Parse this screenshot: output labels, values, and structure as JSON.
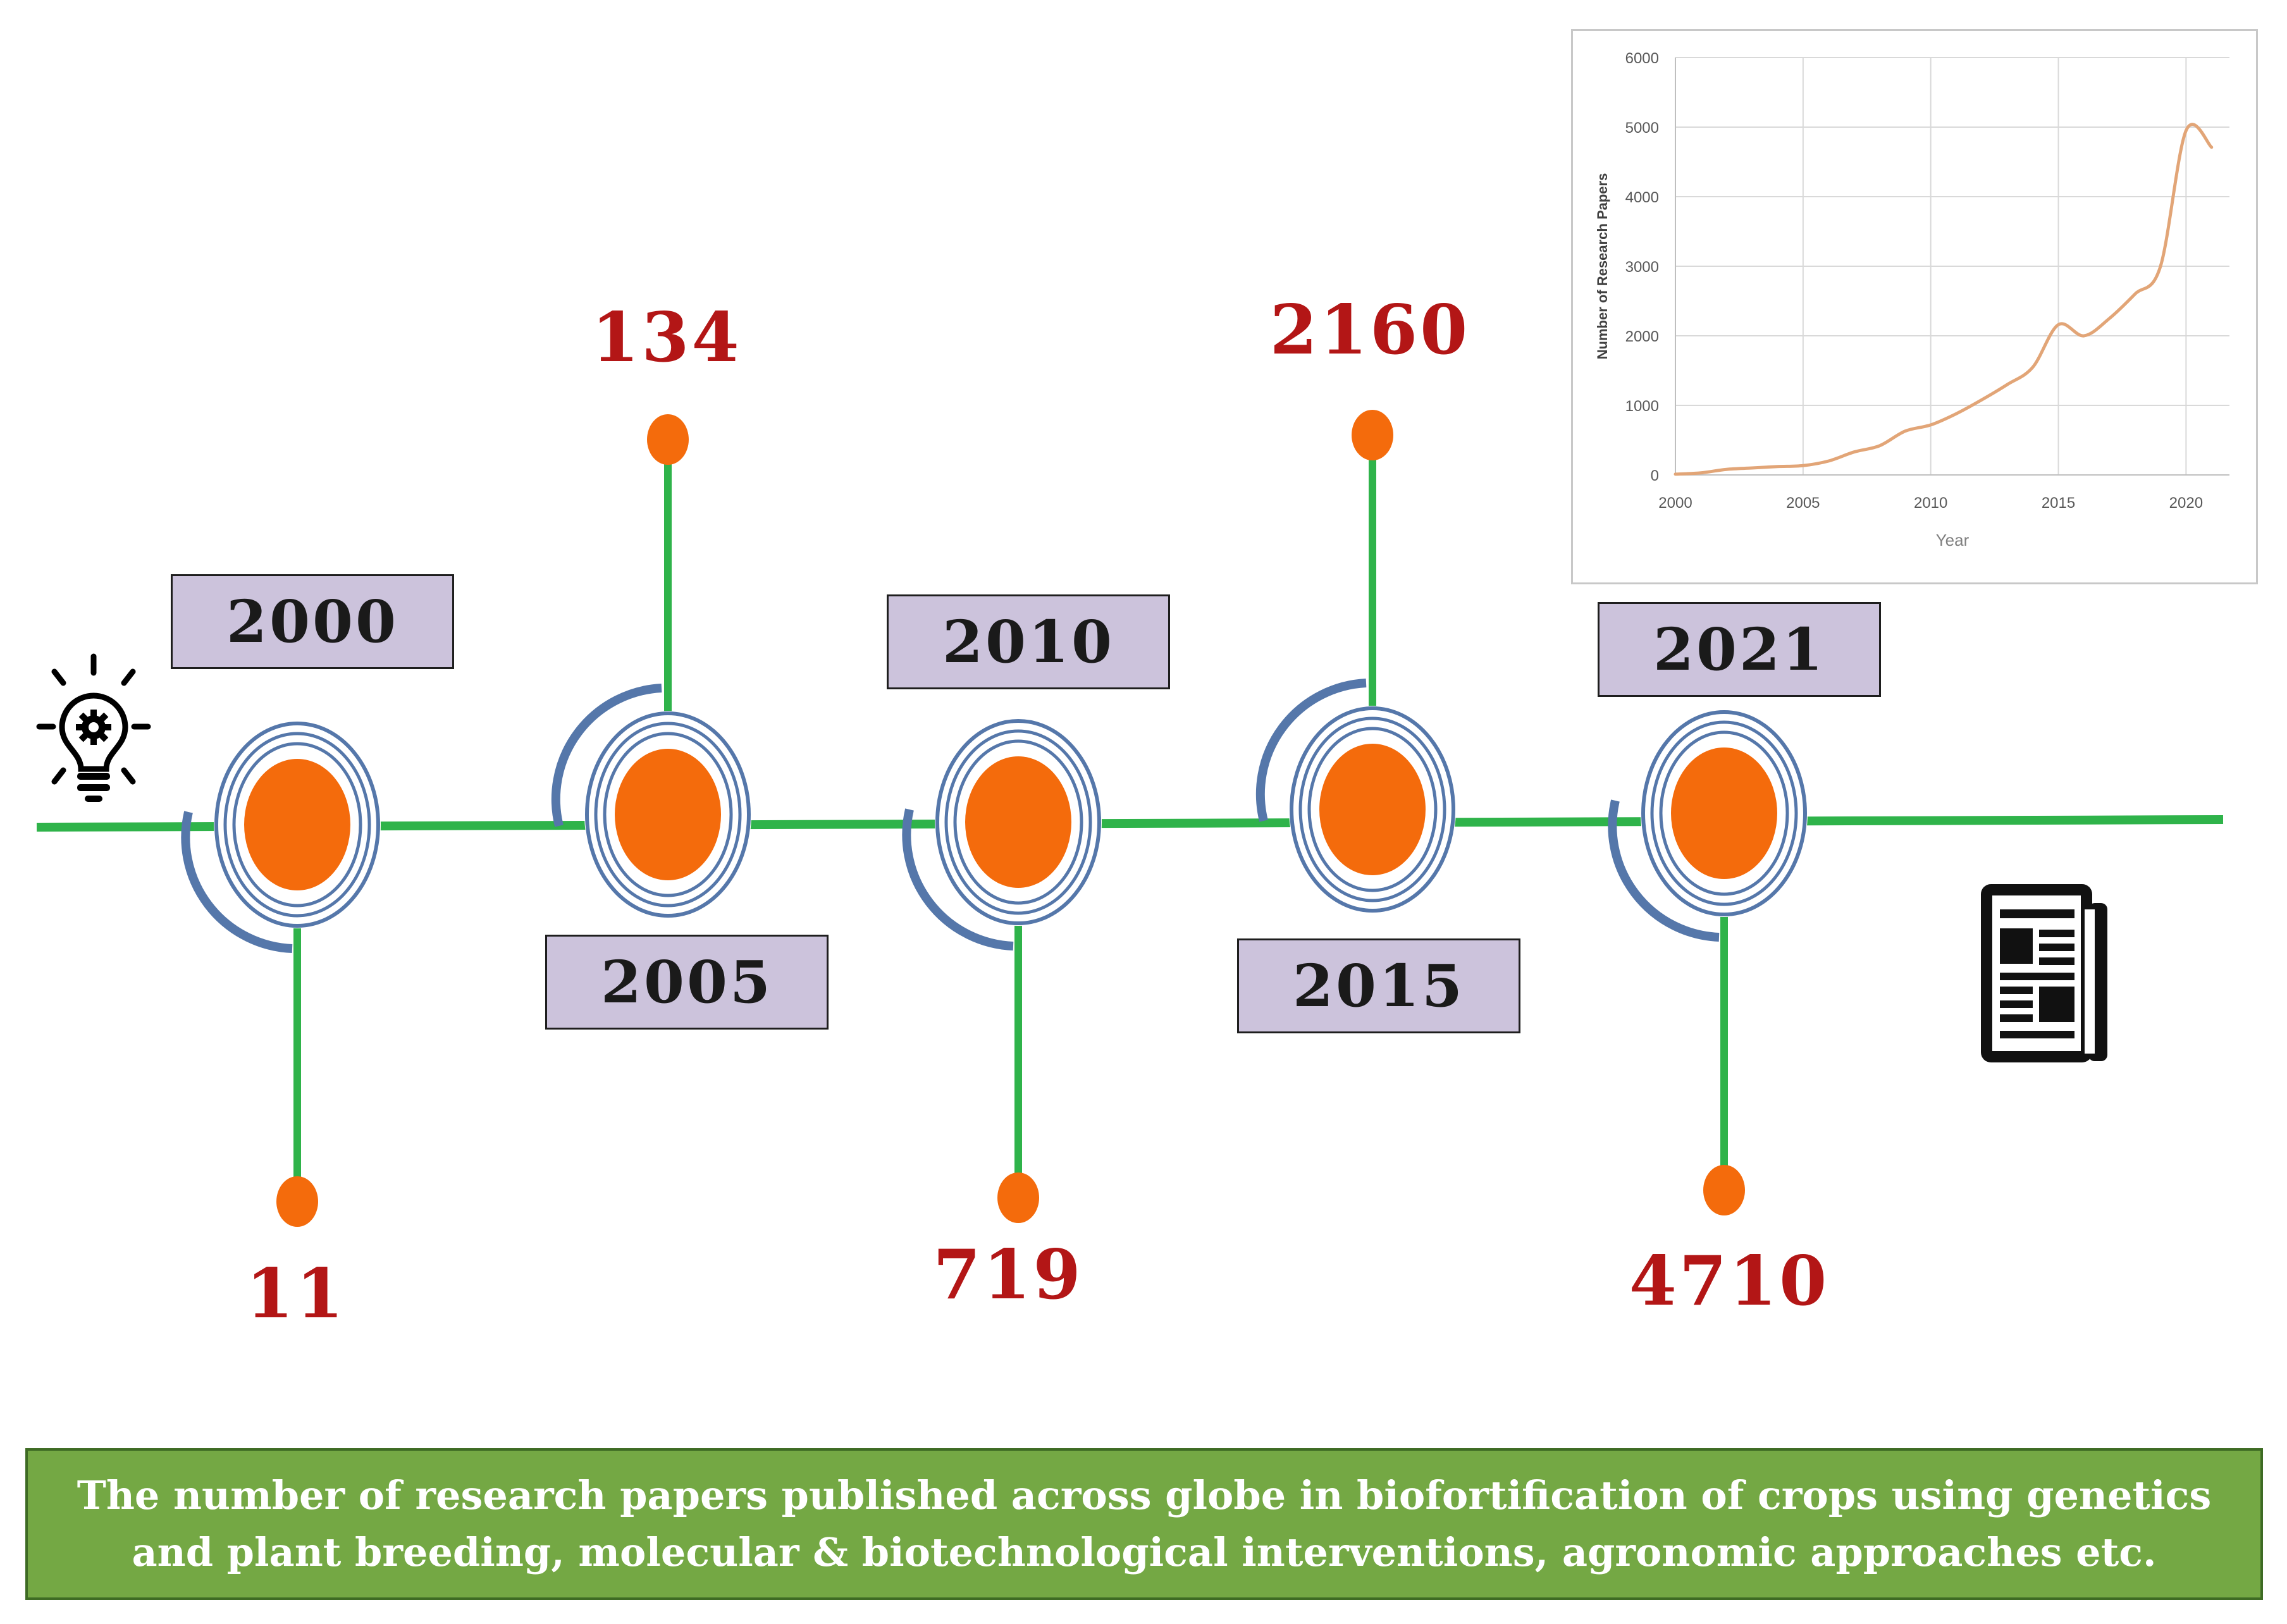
{
  "milestones": [
    {
      "year": "2000",
      "count": "11"
    },
    {
      "year": "2005",
      "count": "134"
    },
    {
      "year": "2010",
      "count": "719"
    },
    {
      "year": "2015",
      "count": "2160"
    },
    {
      "year": "2021",
      "count": "4710"
    }
  ],
  "icons": {
    "start": "lightbulb-gear-icon",
    "end": "newspaper-icon"
  },
  "caption": {
    "line1": "The number of research papers published across globe in biofortification of crops using genetics",
    "line2": "and plant breeding, molecular & biotechnological interventions, agronomic approaches etc."
  },
  "colors": {
    "line": "#2fb34a",
    "node": "#f46b0c",
    "ring": "#5577aa",
    "count_text": "#b31616",
    "year_box": "#ccc3dc",
    "caption_bg": "#74a844",
    "inset_line": "#e2a577"
  },
  "chart_data": {
    "type": "line",
    "title": "",
    "xlabel": "Year",
    "ylabel": "Number of Research Papers",
    "xlim": [
      2000,
      2021
    ],
    "ylim": [
      0,
      6000
    ],
    "xticks": [
      "2000",
      "2005",
      "2010",
      "2015",
      "2020"
    ],
    "yticks": [
      "0",
      "1000",
      "2000",
      "3000",
      "4000",
      "5000",
      "6000"
    ],
    "grid": true,
    "series": [
      {
        "name": "Research papers",
        "x": [
          2000,
          2001,
          2002,
          2003,
          2004,
          2005,
          2006,
          2007,
          2008,
          2009,
          2010,
          2011,
          2012,
          2013,
          2014,
          2015,
          2016,
          2017,
          2018,
          2019,
          2020,
          2021
        ],
        "values": [
          11,
          30,
          80,
          100,
          120,
          134,
          200,
          330,
          420,
          630,
          719,
          880,
          1080,
          1300,
          1550,
          2160,
          2000,
          2250,
          2600,
          3000,
          4950,
          4710
        ]
      }
    ]
  }
}
